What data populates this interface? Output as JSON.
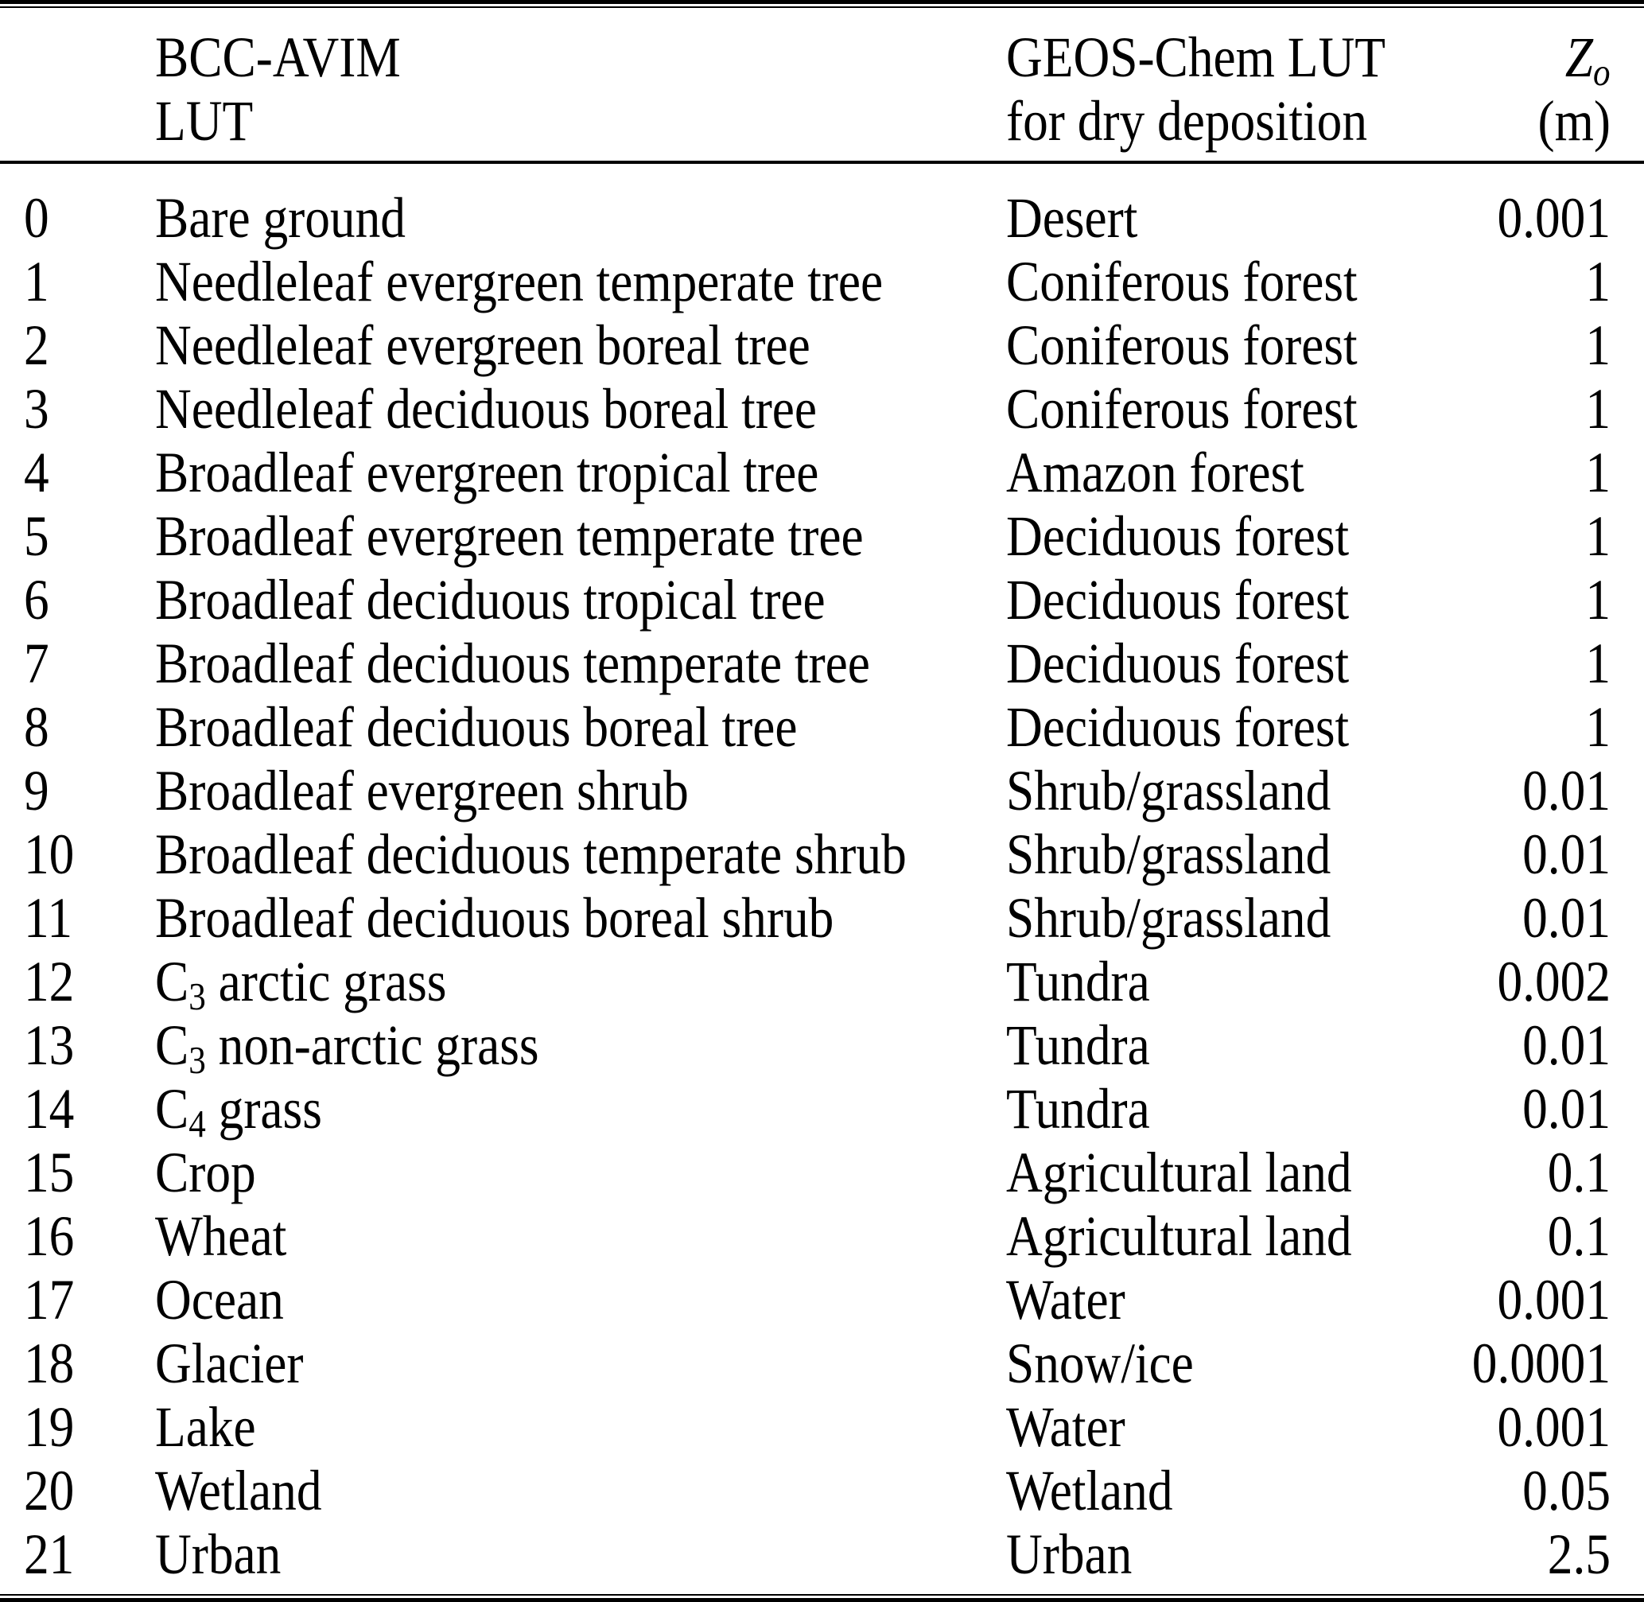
{
  "colors": {
    "text": "#000000",
    "background": "#ffffff",
    "rule": "#000000"
  },
  "table": {
    "header": {
      "bcc_line1": "BCC-AVIM",
      "bcc_line2": "LUT",
      "geos_line1": "GEOS-Chem LUT",
      "geos_line2": "for dry deposition",
      "z_symbol": "Z",
      "z_subscript": "o",
      "z_unit": "(m)"
    },
    "rows": [
      {
        "index": "0",
        "bcc": "Bare ground",
        "bcc_sub": "",
        "bcc_rest": "",
        "geos": "Desert",
        "z0": "0.001"
      },
      {
        "index": "1",
        "bcc": "Needleleaf evergreen temperate tree",
        "bcc_sub": "",
        "bcc_rest": "",
        "geos": "Coniferous forest",
        "z0": "1"
      },
      {
        "index": "2",
        "bcc": "Needleleaf evergreen boreal tree",
        "bcc_sub": "",
        "bcc_rest": "",
        "geos": "Coniferous forest",
        "z0": "1"
      },
      {
        "index": "3",
        "bcc": "Needleleaf deciduous boreal tree",
        "bcc_sub": "",
        "bcc_rest": "",
        "geos": "Coniferous forest",
        "z0": "1"
      },
      {
        "index": "4",
        "bcc": "Broadleaf evergreen tropical tree",
        "bcc_sub": "",
        "bcc_rest": "",
        "geos": "Amazon forest",
        "z0": "1"
      },
      {
        "index": "5",
        "bcc": "Broadleaf evergreen temperate tree",
        "bcc_sub": "",
        "bcc_rest": "",
        "geos": "Deciduous forest",
        "z0": "1"
      },
      {
        "index": "6",
        "bcc": "Broadleaf deciduous tropical tree",
        "bcc_sub": "",
        "bcc_rest": "",
        "geos": "Deciduous forest",
        "z0": "1"
      },
      {
        "index": "7",
        "bcc": "Broadleaf deciduous temperate tree",
        "bcc_sub": "",
        "bcc_rest": "",
        "geos": "Deciduous forest",
        "z0": "1"
      },
      {
        "index": "8",
        "bcc": "Broadleaf deciduous boreal tree",
        "bcc_sub": "",
        "bcc_rest": "",
        "geos": "Deciduous forest",
        "z0": "1"
      },
      {
        "index": "9",
        "bcc": "Broadleaf evergreen shrub",
        "bcc_sub": "",
        "bcc_rest": "",
        "geos": "Shrub/grassland",
        "z0": "0.01"
      },
      {
        "index": "10",
        "bcc": "Broadleaf deciduous temperate shrub",
        "bcc_sub": "",
        "bcc_rest": "",
        "geos": "Shrub/grassland",
        "z0": "0.01"
      },
      {
        "index": "11",
        "bcc": "Broadleaf deciduous boreal shrub",
        "bcc_sub": "",
        "bcc_rest": "",
        "geos": "Shrub/grassland",
        "z0": "0.01"
      },
      {
        "index": "12",
        "bcc": "C",
        "bcc_sub": "3",
        "bcc_rest": " arctic grass",
        "geos": "Tundra",
        "z0": "0.002"
      },
      {
        "index": "13",
        "bcc": "C",
        "bcc_sub": "3",
        "bcc_rest": " non-arctic grass",
        "geos": "Tundra",
        "z0": "0.01"
      },
      {
        "index": "14",
        "bcc": "C",
        "bcc_sub": "4",
        "bcc_rest": " grass",
        "geos": "Tundra",
        "z0": "0.01"
      },
      {
        "index": "15",
        "bcc": "Crop",
        "bcc_sub": "",
        "bcc_rest": "",
        "geos": "Agricultural land",
        "z0": "0.1"
      },
      {
        "index": "16",
        "bcc": "Wheat",
        "bcc_sub": "",
        "bcc_rest": "",
        "geos": "Agricultural land",
        "z0": "0.1"
      },
      {
        "index": "17",
        "bcc": "Ocean",
        "bcc_sub": "",
        "bcc_rest": "",
        "geos": "Water",
        "z0": "0.001"
      },
      {
        "index": "18",
        "bcc": "Glacier",
        "bcc_sub": "",
        "bcc_rest": "",
        "geos": "Snow/ice",
        "z0": "0.0001"
      },
      {
        "index": "19",
        "bcc": "Lake",
        "bcc_sub": "",
        "bcc_rest": "",
        "geos": "Water",
        "z0": "0.001"
      },
      {
        "index": "20",
        "bcc": "Wetland",
        "bcc_sub": "",
        "bcc_rest": "",
        "geos": "Wetland",
        "z0": "0.05"
      },
      {
        "index": "21",
        "bcc": "Urban",
        "bcc_sub": "",
        "bcc_rest": "",
        "geos": "Urban",
        "z0": "2.5"
      }
    ]
  }
}
